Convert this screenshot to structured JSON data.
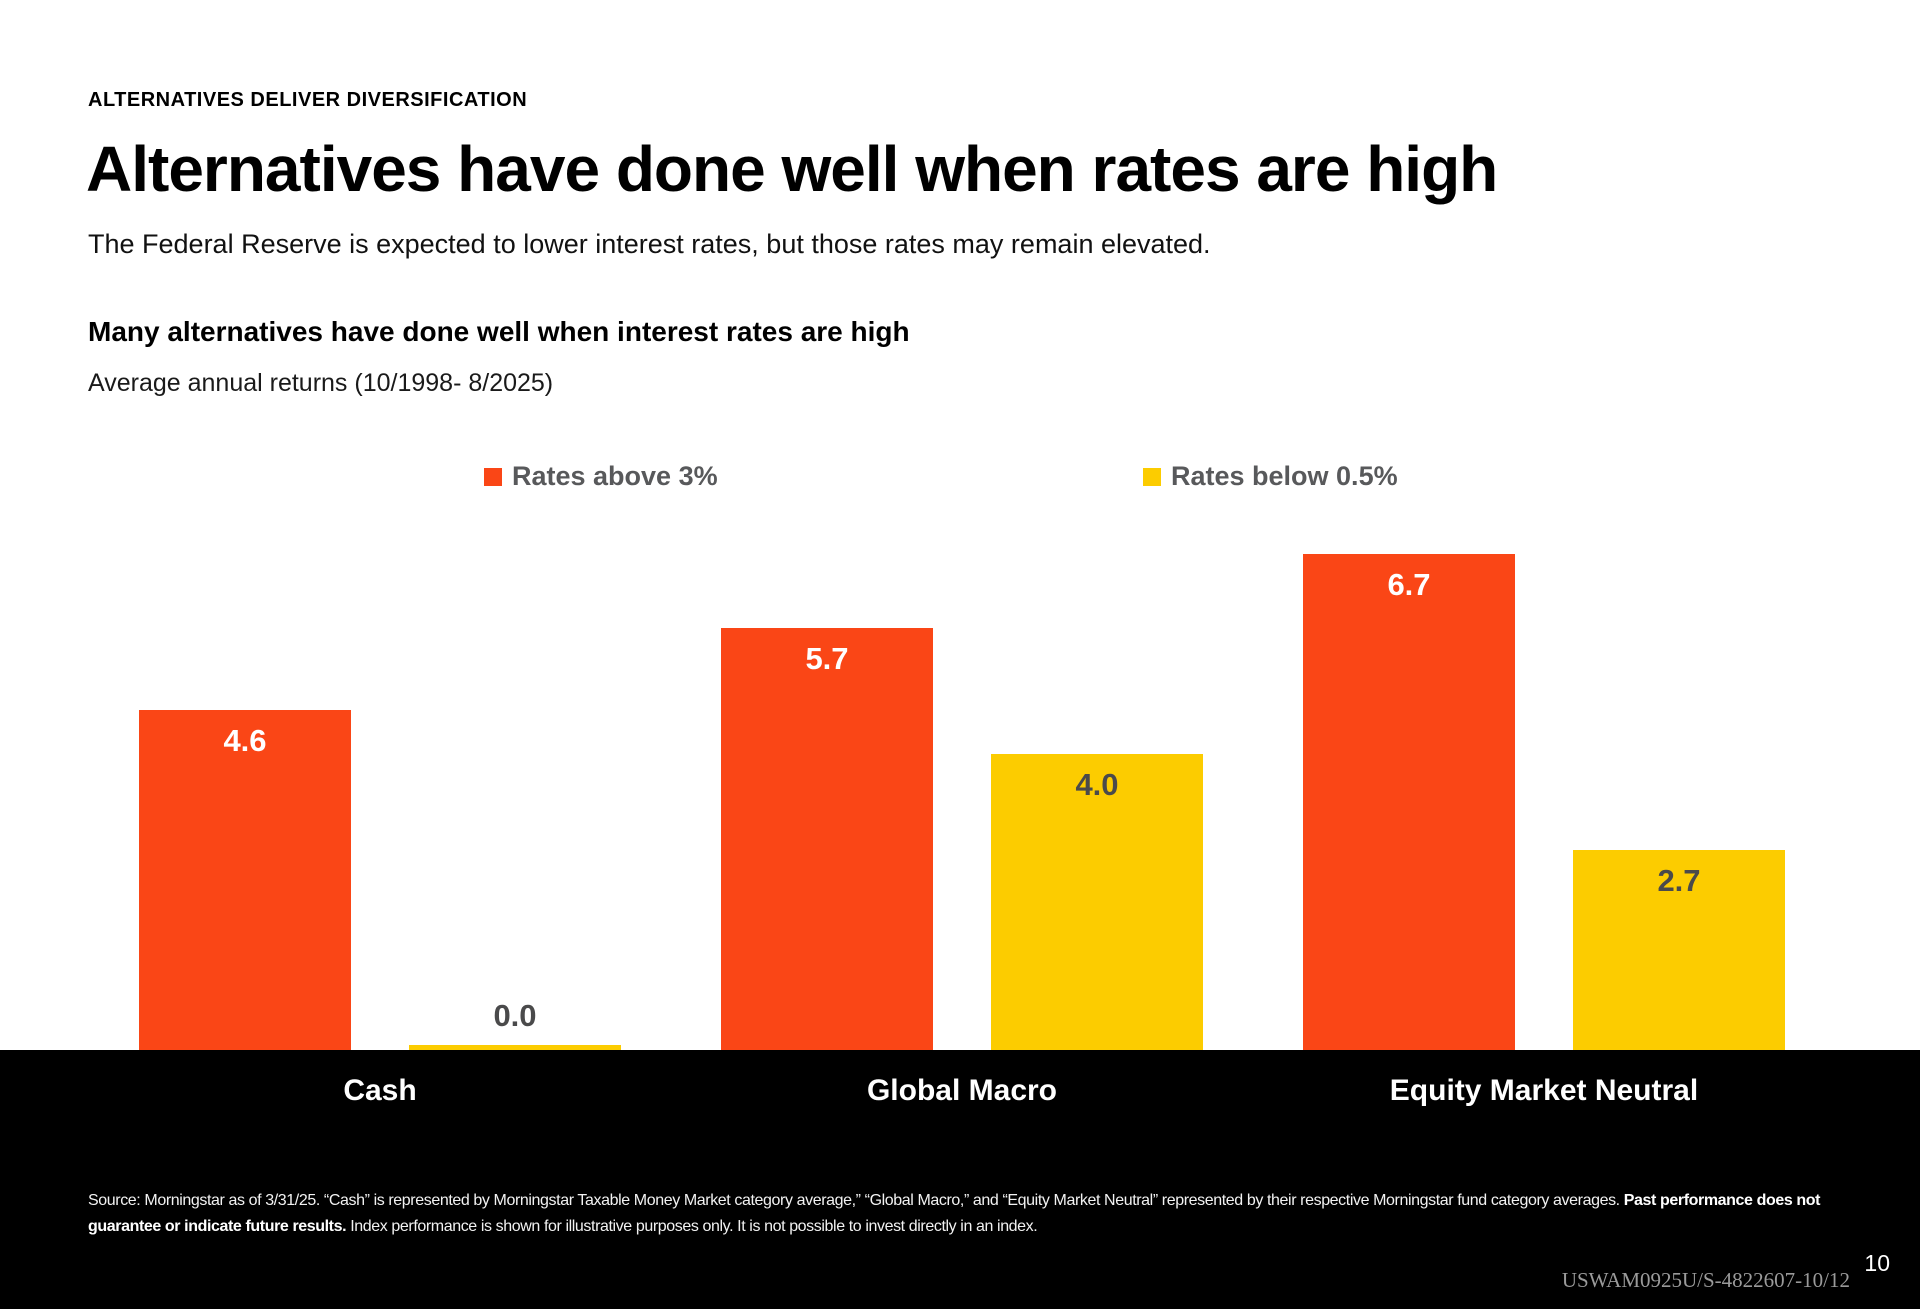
{
  "page": {
    "eyebrow": "ALTERNATIVES DELIVER DIVERSIFICATION",
    "title": "Alternatives have done well when rates are high",
    "subtitle": "The Federal Reserve is expected to lower interest rates, but those rates may remain elevated.",
    "page_number": "10",
    "doc_code": "USWAM0925U/S-4822607-10/12"
  },
  "colors": {
    "rates_above_orange": "#FA4616",
    "rates_below_yellow": "#FCCC00",
    "legend_text_gray": "#58595B",
    "footer_band_black": "#000000",
    "yellow_bar_label_gray": "#4A4A4B"
  },
  "chart_data": {
    "type": "bar",
    "title": "Many alternatives have done well when interest rates are high",
    "subtitle": "Average annual returns (10/1998- 8/2025)",
    "categories": [
      "Cash",
      "Global Macro",
      "Equity Market Neutral"
    ],
    "series": [
      {
        "name": "Rates above 3%",
        "color": "#FA4616",
        "label_color": "#FFFFFF",
        "values": [
          4.6,
          5.7,
          6.7
        ],
        "value_labels": [
          "4.6",
          "5.7",
          "6.7"
        ]
      },
      {
        "name": "Rates below 0.5%",
        "color": "#FCCC00",
        "label_color": "#4A4A4B",
        "values": [
          0.0,
          4.0,
          2.7
        ],
        "value_labels": [
          "0.0",
          "4.0",
          "2.7"
        ]
      }
    ],
    "ylim": [
      0,
      7.1
    ],
    "axes_hidden": true,
    "gridlines": false,
    "legend_position": "top"
  },
  "footer": {
    "source_line1_regular": "Source: Morningstar as of 3/31/25. “Cash” is represented by Morningstar Taxable Money Market category average,” “Global Macro,” and “Equity Market Neutral” represented by their respective Morningstar fund category averages. ",
    "source_line1_bold": "Past performance does not",
    "source_line2_bold": "guarantee or indicate future results.",
    "source_line2_regular": "  Index performance is shown for illustrative purposes only. It is not possible to invest directly in an index."
  }
}
